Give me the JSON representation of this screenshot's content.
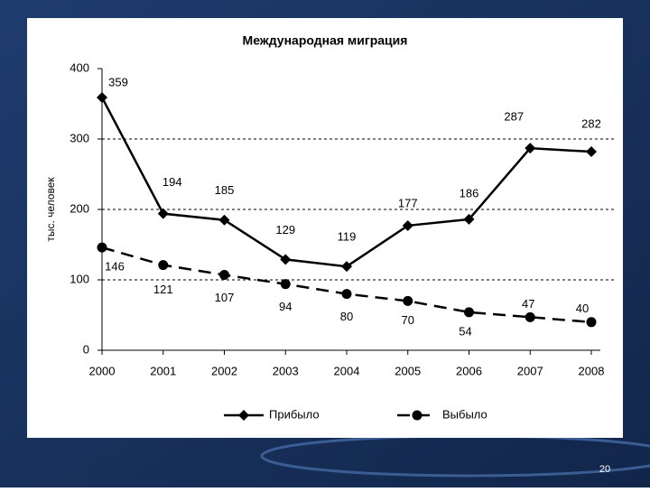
{
  "chart_data": {
    "type": "line",
    "title": "Международная миграция",
    "y_label": "тыс. человек",
    "categories": [
      "2000",
      "2001",
      "2002",
      "2003",
      "2004",
      "2005",
      "2006",
      "2007",
      "2008"
    ],
    "series": [
      {
        "name": "Прибыло",
        "color": "#000000",
        "marker": "diamond",
        "dash": false,
        "values": [
          359,
          194,
          185,
          129,
          119,
          177,
          186,
          287,
          282
        ]
      },
      {
        "name": "Выбыло",
        "color": "#000000",
        "marker": "circle",
        "dash": true,
        "values": [
          146,
          121,
          107,
          94,
          80,
          70,
          54,
          47,
          40
        ]
      }
    ],
    "ylim": [
      0,
      400
    ],
    "yticks": [
      0,
      100,
      200,
      300,
      400
    ],
    "grid": true,
    "legend": "bottom"
  },
  "page_number": "20"
}
